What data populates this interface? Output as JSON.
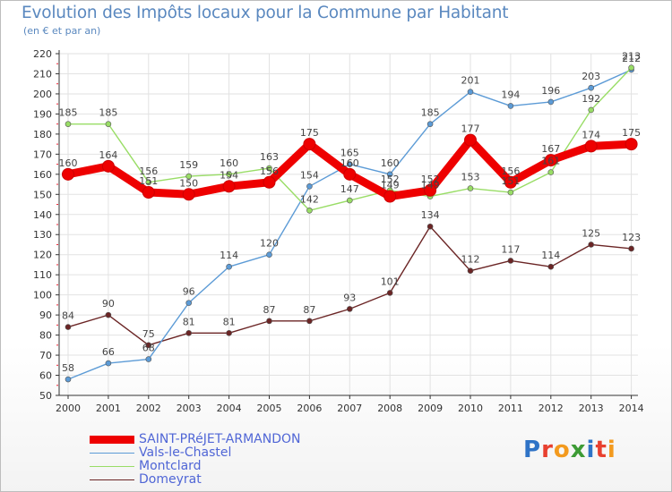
{
  "title": "Evolution des Impôts locaux pour la Commune par Habitant",
  "subtitle": "(en € et par an)",
  "logo": {
    "text": "Proxiti",
    "letters": [
      {
        "ch": "P",
        "color": "#2f73c6"
      },
      {
        "ch": "r",
        "color": "#e8402f"
      },
      {
        "ch": "o",
        "color": "#f39a1e"
      },
      {
        "ch": "x",
        "color": "#3d9b35"
      },
      {
        "ch": "i",
        "color": "#2f73c6"
      },
      {
        "ch": "t",
        "color": "#e8402f"
      },
      {
        "ch": "i",
        "color": "#f39a1e"
      }
    ]
  },
  "chart_data": {
    "type": "line",
    "title": "Evolution des Impôts locaux pour la Commune par Habitant",
    "subtitle": "(en € et par an)",
    "x": [
      "2000",
      "2001",
      "2002",
      "2003",
      "2004",
      "2005",
      "2006",
      "2007",
      "2008",
      "2009",
      "2010",
      "2011",
      "2012",
      "2013",
      "2014"
    ],
    "ylim": [
      50,
      220
    ],
    "yticks": [
      50,
      60,
      70,
      80,
      90,
      100,
      110,
      120,
      130,
      140,
      150,
      160,
      170,
      180,
      190,
      200,
      210,
      220
    ],
    "grid": true,
    "legend_position": "bottom-left",
    "series": [
      {
        "name": "SAINT-PRéJET-ARMANDON",
        "color": "#ee0000",
        "style": "thick",
        "values": [
          160,
          164,
          151,
          150,
          154,
          156,
          175,
          160,
          149,
          152,
          177,
          156,
          167,
          174,
          175
        ]
      },
      {
        "name": "Vals-le-Chastel",
        "color": "#5c9bd6",
        "style": "thin",
        "values": [
          58,
          66,
          68,
          96,
          114,
          120,
          154,
          165,
          160,
          185,
          201,
          194,
          196,
          203,
          212
        ]
      },
      {
        "name": "Montclard",
        "color": "#99dd66",
        "style": "thin",
        "values": [
          185,
          185,
          156,
          159,
          160,
          163,
          142,
          147,
          152,
          149,
          153,
          151,
          161,
          192,
          213
        ]
      },
      {
        "name": "Domeyrat",
        "color": "#6b2525",
        "style": "thin",
        "values": [
          84,
          90,
          75,
          81,
          81,
          87,
          87,
          93,
          101,
          134,
          112,
          117,
          114,
          125,
          123
        ]
      }
    ],
    "labels": [
      [
        160,
        164,
        151,
        150,
        154,
        156,
        175,
        160,
        149,
        152,
        177,
        156,
        167,
        174,
        175
      ],
      [
        58,
        66,
        68,
        96,
        114,
        120,
        154,
        165,
        160,
        185,
        201,
        194,
        196,
        203,
        212
      ],
      [
        185,
        185,
        156,
        159,
        160,
        163,
        142,
        147,
        152,
        149,
        153,
        151,
        161,
        192,
        213
      ],
      [
        84,
        90,
        75,
        81,
        81,
        87,
        87,
        93,
        101,
        134,
        112,
        117,
        114,
        125,
        123
      ]
    ]
  }
}
